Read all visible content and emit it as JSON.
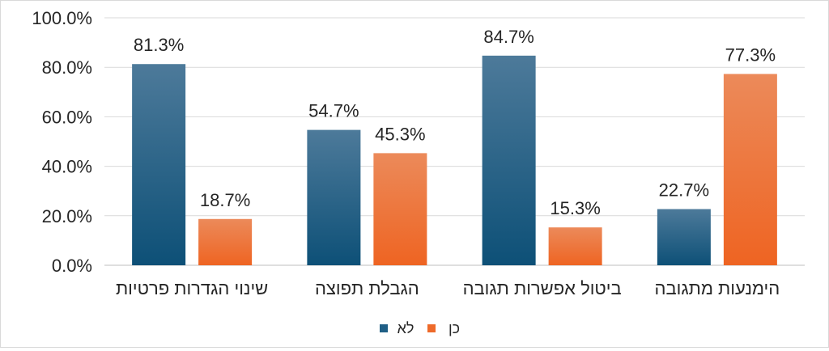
{
  "chart_data": {
    "type": "bar",
    "title": "",
    "xlabel": "",
    "ylabel": "",
    "categories": [
      "שינוי הגדרות פרטיות",
      "הגבלת תפוצה",
      "ביטול אפשרות תגובה",
      "הימנעות מתגובה"
    ],
    "series": [
      {
        "name": "לא",
        "color": "#1f5f86",
        "values": [
          81.3,
          54.7,
          84.7,
          22.7
        ]
      },
      {
        "name": "כן",
        "color": "#ee6a2a",
        "values": [
          18.7,
          45.3,
          15.3,
          77.3
        ]
      }
    ],
    "value_labels": [
      [
        "81.3%",
        "54.7%",
        "84.7%",
        "22.7%"
      ],
      [
        "18.7%",
        "45.3%",
        "15.3%",
        "77.3%"
      ]
    ],
    "ylim": [
      0,
      100
    ],
    "yticks": [
      "0.0%",
      "20.0%",
      "40.0%",
      "60.0%",
      "80.0%",
      "100.0%"
    ],
    "grid": true,
    "legend_position": "bottom-center"
  }
}
